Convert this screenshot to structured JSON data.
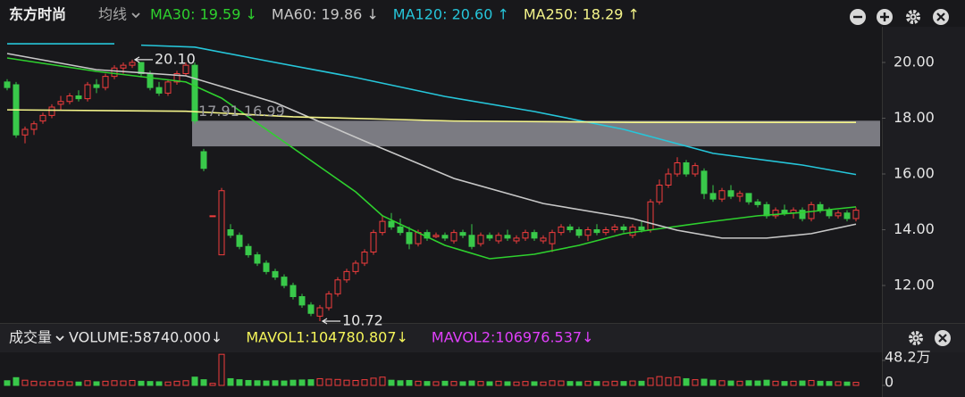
{
  "chart_data": {
    "type": "candlestick",
    "title": "东方时尚",
    "indicator_menu": "均线",
    "volume_title": "成交量",
    "up_color": "#f23d3d",
    "down_color": "#39c94a",
    "ylim": [
      10.72,
      21.28
    ],
    "yticks": [
      {
        "value": 20,
        "label": "20.00"
      },
      {
        "value": 18,
        "label": "18.00"
      },
      {
        "value": 16,
        "label": "16.00"
      },
      {
        "value": 14,
        "label": "14.00"
      },
      {
        "value": 12,
        "label": "12.00"
      }
    ],
    "volume_ylim": [
      0,
      620000
    ],
    "volume_yticks": [
      {
        "value": 482000,
        "label": "48.2万"
      },
      0
    ],
    "open": [
      19.3,
      19.2,
      17.4,
      17.6,
      17.9,
      18.1,
      18.5,
      18.6,
      18.8,
      18.7,
      19.2,
      19.1,
      19.5,
      19.8,
      19.9,
      20.0,
      19.6,
      19.1,
      18.9,
      19.3,
      19.6,
      19.9,
      16.8,
      14.5,
      13.1,
      14.0,
      13.8,
      13.4,
      13.1,
      12.8,
      12.5,
      12.3,
      12.0,
      11.6,
      11.3,
      10.9,
      11.2,
      11.7,
      12.2,
      12.5,
      12.8,
      13.2,
      13.9,
      14.3,
      14.1,
      13.9,
      13.5,
      13.9,
      13.75,
      13.8,
      13.6,
      13.9,
      13.8,
      13.5,
      13.8,
      13.6,
      13.8,
      13.6,
      13.7,
      13.9,
      13.6,
      13.5,
      13.9,
      14.1,
      14.0,
      13.8,
      14.0,
      13.9,
      14.0,
      14.1,
      13.8,
      14.1,
      14.0,
      15.0,
      15.6,
      16.0,
      16.4,
      16.0,
      16.1,
      15.3,
      15.1,
      15.4,
      15.2,
      15.3,
      15.0,
      14.9,
      14.5,
      14.7,
      14.6,
      14.7,
      14.4,
      14.9,
      14.7,
      14.5,
      14.6,
      14.4
    ],
    "high": [
      19.4,
      19.3,
      17.7,
      17.9,
      18.2,
      18.5,
      18.8,
      18.9,
      19.0,
      19.3,
      19.4,
      19.6,
      19.9,
      20.0,
      20.1,
      20.0,
      19.7,
      19.3,
      19.4,
      19.7,
      20.0,
      20.0,
      16.9,
      14.5,
      15.5,
      14.2,
      13.9,
      13.5,
      13.2,
      12.9,
      12.6,
      12.4,
      12.1,
      11.7,
      11.4,
      11.3,
      11.8,
      12.3,
      12.6,
      12.9,
      13.3,
      14.0,
      14.5,
      14.6,
      14.4,
      14.1,
      14.0,
      14.0,
      13.9,
      13.9,
      14.0,
      14.0,
      14.2,
      13.9,
      13.9,
      13.9,
      14.0,
      13.8,
      14.0,
      14.0,
      13.8,
      14.0,
      14.2,
      14.2,
      14.1,
      14.1,
      14.2,
      14.1,
      14.2,
      14.2,
      14.2,
      14.3,
      15.1,
      15.8,
      16.2,
      16.6,
      16.5,
      16.4,
      16.2,
      15.6,
      15.5,
      15.6,
      15.4,
      15.3,
      15.1,
      15.0,
      14.8,
      14.9,
      14.8,
      14.8,
      15.0,
      15.0,
      14.8,
      14.7,
      14.7,
      14.8
    ],
    "low": [
      19.0,
      17.3,
      17.1,
      17.4,
      17.8,
      18.0,
      18.3,
      18.5,
      18.6,
      18.6,
      18.9,
      19.0,
      19.4,
      19.6,
      19.8,
      19.5,
      19.0,
      18.8,
      18.8,
      19.2,
      19.5,
      17.8,
      16.1,
      14.5,
      13.1,
      13.7,
      13.3,
      13.0,
      12.7,
      12.4,
      12.2,
      11.9,
      11.5,
      11.2,
      10.9,
      10.72,
      11.1,
      11.6,
      12.1,
      12.4,
      12.7,
      13.1,
      13.8,
      14.0,
      13.8,
      13.3,
      13.4,
      13.6,
      13.7,
      13.6,
      13.5,
      13.7,
      13.3,
      13.4,
      13.6,
      13.5,
      13.6,
      13.5,
      13.6,
      13.6,
      13.5,
      13.2,
      13.8,
      13.9,
      13.7,
      13.6,
      13.8,
      13.8,
      13.9,
      13.9,
      13.7,
      13.9,
      13.9,
      14.9,
      15.5,
      15.9,
      15.9,
      15.9,
      15.1,
      15.0,
      15.0,
      15.1,
      15.0,
      14.9,
      14.8,
      14.4,
      14.4,
      14.5,
      14.4,
      14.3,
      14.3,
      14.6,
      14.4,
      14.4,
      14.3,
      14.3
    ],
    "close": [
      19.1,
      17.4,
      17.6,
      17.8,
      18.1,
      18.4,
      18.6,
      18.8,
      18.7,
      19.2,
      19.1,
      19.5,
      19.8,
      19.9,
      20.0,
      19.6,
      19.1,
      18.9,
      19.3,
      19.6,
      19.9,
      17.9,
      16.2,
      14.5,
      15.4,
      13.8,
      13.4,
      13.1,
      12.8,
      12.5,
      12.3,
      12.0,
      11.6,
      11.3,
      11.0,
      11.2,
      11.7,
      12.2,
      12.5,
      12.8,
      13.2,
      13.9,
      14.3,
      14.1,
      13.9,
      13.5,
      13.9,
      13.7,
      13.8,
      13.7,
      13.9,
      13.8,
      13.4,
      13.8,
      13.7,
      13.8,
      13.7,
      13.7,
      13.9,
      13.7,
      13.7,
      13.9,
      14.1,
      14.0,
      13.8,
      14.0,
      13.9,
      14.0,
      14.1,
      14.0,
      14.1,
      14.0,
      15.0,
      15.6,
      16.0,
      16.4,
      16.0,
      16.3,
      15.3,
      15.1,
      15.4,
      15.2,
      15.3,
      15.0,
      14.9,
      14.5,
      14.7,
      14.6,
      14.7,
      14.4,
      14.9,
      14.7,
      14.5,
      14.6,
      14.4,
      14.7
    ],
    "volume": [
      90000,
      150000,
      100000,
      80000,
      70000,
      75000,
      80000,
      70000,
      65000,
      90000,
      70000,
      80000,
      90000,
      85000,
      95000,
      80000,
      75000,
      70000,
      65000,
      80000,
      90000,
      160000,
      110000,
      40000,
      600000,
      130000,
      110000,
      95000,
      90000,
      85000,
      90000,
      85000,
      100000,
      105000,
      110000,
      130000,
      120000,
      115000,
      100000,
      95000,
      110000,
      140000,
      160000,
      100000,
      90000,
      95000,
      80000,
      75000,
      70000,
      80000,
      75000,
      70000,
      85000,
      75000,
      70000,
      80000,
      70000,
      65000,
      75000,
      70000,
      65000,
      90000,
      85000,
      75000,
      70000,
      80000,
      75000,
      70000,
      80000,
      75000,
      85000,
      80000,
      140000,
      170000,
      150000,
      160000,
      130000,
      110000,
      120000,
      100000,
      90000,
      85000,
      80000,
      90000,
      85000,
      100000,
      80000,
      75000,
      80000,
      85000,
      95000,
      80000,
      75000,
      70000,
      65000,
      58740
    ],
    "series": [
      {
        "name": "MA30: 19.59 ↓",
        "color": "#2ed12e",
        "x": [
          0,
          10,
          20,
          24,
          29,
          34,
          39,
          42,
          49,
          54,
          59,
          64,
          69,
          74,
          79,
          84,
          89,
          95
        ],
        "values": [
          20.16,
          19.68,
          19.3,
          18.72,
          17.6,
          16.48,
          15.36,
          14.5,
          13.44,
          12.96,
          13.12,
          13.44,
          13.86,
          14.08,
          14.3,
          14.5,
          14.62,
          14.82
        ]
      },
      {
        "name": "MA60: 19.86 ↓",
        "color": "#c8c8c8",
        "x": [
          0,
          10,
          20,
          30,
          40,
          50,
          60,
          70,
          75,
          80,
          85,
          90,
          95
        ],
        "values": [
          20.32,
          19.74,
          19.52,
          18.56,
          17.18,
          15.84,
          14.94,
          14.4,
          13.98,
          13.7,
          13.7,
          13.86,
          14.2
        ]
      },
      {
        "name": "MA120: 20.60 ↑",
        "color": "#26c6da",
        "x": [
          0,
          12,
          13,
          15,
          21,
          29,
          39,
          49,
          59,
          69,
          79,
          89,
          95
        ],
        "values": [
          20.67,
          20.67,
          null,
          20.62,
          20.55,
          20.06,
          19.46,
          18.78,
          18.24,
          17.6,
          16.74,
          16.32,
          15.98
        ]
      },
      {
        "name": "MA250: 18.29 ↑",
        "color": "#f5f58a",
        "x": [
          0,
          20,
          32,
          50,
          70,
          95
        ],
        "values": [
          18.3,
          18.25,
          18.05,
          17.9,
          17.85,
          17.85
        ]
      }
    ],
    "indicators": [
      {
        "name": "VOLUME:58740.000↓",
        "color": "#e6e6e6"
      },
      {
        "name": "MAVOL1:104780.807↓",
        "color": "#f5f55a"
      },
      {
        "name": "MAVOL2:106976.537↓",
        "color": "#e040fb"
      }
    ],
    "band": {
      "label": "17.91 16.99",
      "values": [
        17.91,
        16.99
      ],
      "start": 21
    },
    "annotations": [
      {
        "label": "20.10",
        "value": 20.1,
        "index": 14
      },
      {
        "label": "10.72",
        "value": 10.72,
        "index": 35
      }
    ]
  }
}
